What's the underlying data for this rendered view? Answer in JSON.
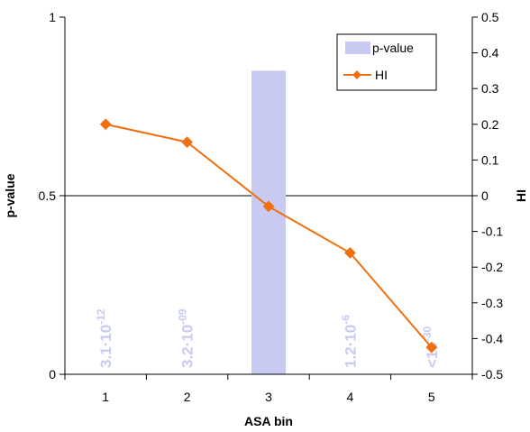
{
  "chart_data": {
    "type": "bar+line",
    "x_categories": [
      "1",
      "2",
      "3",
      "4",
      "5"
    ],
    "xlabel": "ASA bin",
    "ylabel_left": "p-value",
    "ylabel_right": "HI",
    "ylim_left": [
      0,
      1
    ],
    "ylim_right": [
      -0.5,
      0.5
    ],
    "yticks_left": [
      "0",
      "0.5",
      "1"
    ],
    "yticks_right": [
      "-0.5",
      "-0.4",
      "-0.3",
      "-0.2",
      "-0.1",
      "0",
      "0.1",
      "0.2",
      "0.3",
      "0.4",
      "0.5"
    ],
    "grid": "horizontal line at 0.5 (left) / 0 (right)",
    "legend_position": "top-right",
    "series": [
      {
        "name": "p-value",
        "kind": "bar",
        "axis": "left",
        "color": "#c8caf2",
        "values": [
          null,
          null,
          0.85,
          null,
          null
        ]
      },
      {
        "name": "HI",
        "kind": "line",
        "axis": "right",
        "color": "#f07010",
        "marker": "diamond",
        "values": [
          0.2,
          0.15,
          -0.03,
          -0.16,
          -0.425
        ]
      }
    ],
    "bar_annotations": [
      {
        "category": "1",
        "base": "3.1·10",
        "exp": "-12"
      },
      {
        "category": "2",
        "base": "3.2·10",
        "exp": "-09"
      },
      {
        "category": "4",
        "base": "1.2·10",
        "exp": "-6"
      },
      {
        "category": "5",
        "base": "<10",
        "exp": "-30"
      }
    ]
  }
}
